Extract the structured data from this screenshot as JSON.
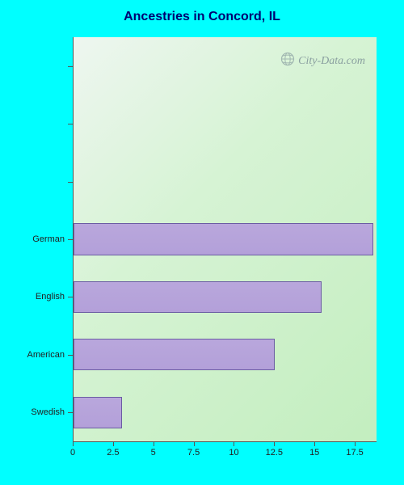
{
  "chart": {
    "type": "bar-horizontal",
    "title": "Ancestries in Concord, IL",
    "title_color": "#000070",
    "title_fontsize": 16,
    "page_background": "#00ffff",
    "plot_background_gradient": [
      "#eef6f0",
      "#d6f3d4",
      "#c3eebf"
    ],
    "bar_fill_gradient": [
      "#b9a7dc",
      "#b3a0d9"
    ],
    "bar_border": "#6b5ca3",
    "axis_line_color": "#555555",
    "tick_label_color": "#222222",
    "tick_fontsize": 11,
    "x_axis": {
      "min": 0,
      "max": 18.8,
      "ticks": [
        0,
        2.5,
        5,
        7.5,
        10,
        12.5,
        15,
        17.5
      ],
      "tick_labels": [
        "0",
        "2.5",
        "5",
        "7.5",
        "10",
        "12.5",
        "15",
        "17.5"
      ]
    },
    "y_axis": {
      "total_slots": 7,
      "categories": [
        "German",
        "English",
        "American",
        "Swedish"
      ],
      "category_slot_indices": [
        3,
        4,
        5,
        6
      ],
      "bar_width_ratio": 0.55
    },
    "series": [
      {
        "label": "German",
        "value": 18.6
      },
      {
        "label": "English",
        "value": 15.4
      },
      {
        "label": "American",
        "value": 12.5
      },
      {
        "label": "Swedish",
        "value": 3.0
      }
    ],
    "watermark": {
      "text": "City-Data.com",
      "color": "#7d9197",
      "fontsize": 14,
      "icon": "globe-icon"
    }
  }
}
